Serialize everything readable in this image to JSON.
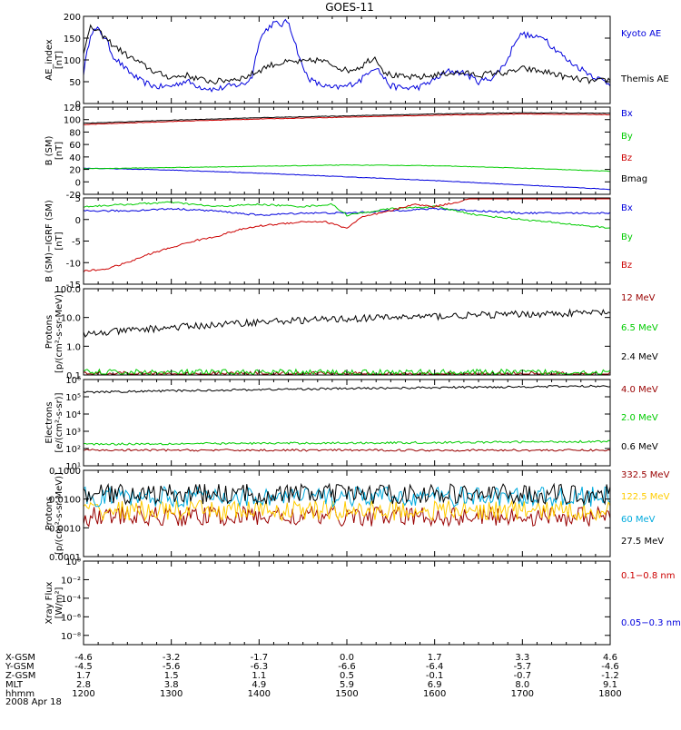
{
  "title": "GOES-11",
  "date": "2008 Apr 18",
  "x_axis": {
    "times": [
      1200,
      1300,
      1400,
      1500,
      1600,
      1700,
      1800
    ],
    "range": [
      1200,
      1800
    ],
    "ephemeris": [
      {
        "label": "X-GSM",
        "values": [
          "-4.6",
          "-3.2",
          "-1.7",
          "0.0",
          "1.7",
          "3.3",
          "4.6"
        ]
      },
      {
        "label": "Y-GSM",
        "values": [
          "-4.5",
          "-5.6",
          "-6.3",
          "-6.6",
          "-6.4",
          "-5.7",
          "-4.6"
        ]
      },
      {
        "label": "Z-GSM",
        "values": [
          "1.7",
          "1.5",
          "1.1",
          "0.5",
          "-0.1",
          "-0.7",
          "-1.2"
        ]
      },
      {
        "label": "MLT",
        "values": [
          "2.8",
          "3.8",
          "4.9",
          "5.9",
          "6.9",
          "8.0",
          "9.1"
        ]
      },
      {
        "label": "hhmm",
        "values": [
          "1200",
          "1300",
          "1400",
          "1500",
          "1600",
          "1700",
          "1800"
        ]
      }
    ]
  },
  "chart_data": [
    {
      "type": "line",
      "ylabel": "AE_index\n[nT]",
      "ylim": [
        0,
        200
      ],
      "log": false,
      "yticks": [
        "0",
        "50",
        "100",
        "150",
        "200"
      ],
      "ytick_values": [
        0,
        50,
        100,
        150,
        200
      ],
      "series": [
        {
          "name": "Kyoto AE",
          "color": "#0000dd",
          "x": [
            1200,
            1205,
            1210,
            1215,
            1220,
            1230,
            1240,
            1250,
            1300,
            1310,
            1320,
            1330,
            1340,
            1350,
            1355,
            1400,
            1405,
            1410,
            1415,
            1420,
            1425,
            1430,
            1435,
            1440,
            1450,
            1500,
            1510,
            1515,
            1520,
            1525,
            1530,
            1540,
            1550,
            1600,
            1610,
            1620,
            1630,
            1640,
            1650,
            1655,
            1700,
            1710,
            1715,
            1720,
            1725,
            1730,
            1740,
            1750,
            1800
          ],
          "y": [
            70,
            165,
            170,
            150,
            110,
            75,
            50,
            38,
            40,
            52,
            38,
            32,
            40,
            45,
            60,
            145,
            170,
            185,
            180,
            190,
            135,
            80,
            55,
            45,
            35,
            40,
            55,
            75,
            85,
            60,
            40,
            35,
            38,
            55,
            75,
            70,
            50,
            60,
            100,
            145,
            160,
            150,
            155,
            130,
            120,
            100,
            80,
            60,
            45
          ]
        },
        {
          "name": "Themis AE",
          "color": "#000000",
          "x": [
            1200,
            1205,
            1210,
            1215,
            1220,
            1230,
            1240,
            1250,
            1300,
            1310,
            1320,
            1330,
            1340,
            1350,
            1400,
            1405,
            1410,
            1420,
            1430,
            1440,
            1450,
            1500,
            1510,
            1515,
            1520,
            1525,
            1530,
            1540,
            1550,
            1600,
            1610,
            1620,
            1630,
            1640,
            1650,
            1700,
            1710,
            1720,
            1730,
            1740,
            1750,
            1800
          ],
          "y": [
            120,
            175,
            165,
            150,
            135,
            110,
            90,
            70,
            60,
            65,
            55,
            50,
            55,
            60,
            75,
            85,
            90,
            95,
            95,
            100,
            90,
            75,
            85,
            100,
            105,
            75,
            65,
            60,
            60,
            65,
            70,
            70,
            65,
            70,
            70,
            80,
            75,
            70,
            60,
            55,
            50,
            55
          ]
        }
      ]
    },
    {
      "type": "line",
      "ylabel": "B (SM)\n[nT]",
      "ylim": [
        -20,
        120
      ],
      "log": false,
      "yticks": [
        "-20",
        "0",
        "20",
        "40",
        "60",
        "80",
        "100",
        "120"
      ],
      "ytick_values": [
        -20,
        0,
        20,
        40,
        60,
        80,
        100,
        120
      ],
      "series": [
        {
          "name": "Bx",
          "color": "#0000dd",
          "x": [
            1200,
            1300,
            1400,
            1500,
            1600,
            1700,
            1800
          ],
          "y": [
            22,
            19,
            14,
            8,
            2,
            -5,
            -12
          ]
        },
        {
          "name": "By",
          "color": "#00cc00",
          "x": [
            1200,
            1300,
            1400,
            1500,
            1600,
            1700,
            1800
          ],
          "y": [
            21,
            23,
            25,
            27,
            26,
            22,
            17
          ]
        },
        {
          "name": "Bz",
          "color": "#cc0000",
          "x": [
            1200,
            1300,
            1400,
            1500,
            1600,
            1700,
            1800
          ],
          "y": [
            92,
            97,
            101,
            104,
            107,
            109,
            108
          ]
        },
        {
          "name": "Bmag",
          "color": "#000000",
          "x": [
            1200,
            1300,
            1400,
            1500,
            1600,
            1700,
            1800
          ],
          "y": [
            94,
            99,
            103,
            106,
            109,
            111,
            110
          ]
        }
      ]
    },
    {
      "type": "line",
      "ylabel": "B (SM)−IGRF (SM)\n[nT]",
      "ylim": [
        -15,
        5
      ],
      "log": false,
      "yticks": [
        "-15",
        "-10",
        "-5",
        "0",
        "5"
      ],
      "ytick_values": [
        -15,
        -10,
        -5,
        0,
        5
      ],
      "series": [
        {
          "name": "Bx",
          "color": "#0000dd",
          "x": [
            1200,
            1230,
            1300,
            1330,
            1400,
            1430,
            1500,
            1530,
            1600,
            1630,
            1700,
            1730,
            1800
          ],
          "y": [
            2,
            2,
            2.5,
            2,
            1,
            1.5,
            1.5,
            2,
            2.5,
            2,
            1.5,
            1.5,
            1.5
          ]
        },
        {
          "name": "By",
          "color": "#00cc00",
          "x": [
            1200,
            1230,
            1300,
            1330,
            1400,
            1430,
            1450,
            1500,
            1530,
            1600,
            1630,
            1700,
            1730,
            1800
          ],
          "y": [
            3,
            3.5,
            4,
            3,
            3.5,
            3,
            3.5,
            1,
            2.5,
            3,
            1,
            0,
            -1,
            -2
          ]
        },
        {
          "name": "Bz",
          "color": "#cc0000",
          "x": [
            1200,
            1215,
            1230,
            1245,
            1300,
            1315,
            1330,
            1345,
            1400,
            1415,
            1430,
            1445,
            1500,
            1510,
            1530,
            1545,
            1600,
            1615,
            1630,
            1645,
            1700,
            1715,
            1730,
            1745,
            1800
          ],
          "y": [
            -12,
            -11.5,
            -10,
            -8,
            -6.5,
            -5,
            -4,
            -2.5,
            -1.5,
            -1,
            -0.5,
            -0.5,
            -2,
            0.5,
            2,
            3.5,
            3,
            4,
            5.5,
            6,
            6,
            7.5,
            6,
            6,
            5.5
          ]
        }
      ]
    },
    {
      "type": "line",
      "ylabel": "Protons\n[p/(cm²-s-sr-MeV)]",
      "ylim": [
        0.1,
        100
      ],
      "log": true,
      "yticks": [
        "0.1",
        "1.0",
        "10.0",
        "100.0"
      ],
      "ytick_values": [
        0.1,
        1,
        10,
        100
      ],
      "series": [
        {
          "name": "12 MeV",
          "color": "#990000",
          "x": [
            1200,
            1800
          ],
          "y": [
            0.1,
            0.1
          ]
        },
        {
          "name": "6.5 MeV",
          "color": "#00cc00",
          "x": [
            1200,
            1800
          ],
          "y": [
            0.12,
            0.12
          ]
        },
        {
          "name": "2.4 MeV",
          "color": "#000000",
          "x": [
            1200,
            1230,
            1300,
            1330,
            1400,
            1430,
            1500,
            1530,
            1600,
            1630,
            1700,
            1730,
            1800
          ],
          "y": [
            2.5,
            3.5,
            4.5,
            5.5,
            7,
            8,
            9,
            10,
            11,
            12,
            13,
            14,
            15
          ]
        }
      ]
    },
    {
      "type": "line",
      "ylabel": "Electrons\n[e/(cm²-s-sr)]",
      "ylim": [
        10,
        1000000
      ],
      "log": true,
      "yticks": [
        "10¹",
        "10²",
        "10³",
        "10⁴",
        "10⁵",
        "10⁶"
      ],
      "ytick_values": [
        10,
        100,
        1000,
        10000,
        100000,
        1000000
      ],
      "series": [
        {
          "name": "4.0 MeV",
          "color": "#990000",
          "x": [
            1200,
            1800
          ],
          "y": [
            80,
            80
          ]
        },
        {
          "name": "2.0 MeV",
          "color": "#00cc00",
          "x": [
            1200,
            1300,
            1400,
            1500,
            1600,
            1700,
            1800
          ],
          "y": [
            180,
            190,
            200,
            210,
            220,
            240,
            260
          ]
        },
        {
          "name": "0.6 MeV",
          "color": "#000000",
          "x": [
            1200,
            1300,
            1400,
            1500,
            1600,
            1700,
            1800
          ],
          "y": [
            180000,
            220000,
            260000,
            300000,
            340000,
            380000,
            420000
          ]
        }
      ]
    },
    {
      "type": "line",
      "ylabel": "Protons\n[p/(cm²-s-sr-MeV)]",
      "ylim": [
        0.0001,
        0.1
      ],
      "log": true,
      "yticks": [
        "0.0001",
        "0.0010",
        "0.0100",
        "0.1000"
      ],
      "ytick_values": [
        0.0001,
        0.001,
        0.01,
        0.1
      ],
      "series": [
        {
          "name": "332.5 MeV",
          "color": "#990000",
          "x": [
            1200,
            1800
          ],
          "y": [
            0.0025,
            0.0025
          ]
        },
        {
          "name": "122.5 MeV",
          "color": "#ffcc00",
          "x": [
            1200,
            1800
          ],
          "y": [
            0.004,
            0.004
          ]
        },
        {
          "name": "60 MeV",
          "color": "#00aadd",
          "x": [
            1200,
            1800
          ],
          "y": [
            0.012,
            0.012
          ]
        },
        {
          "name": "27.5 MeV",
          "color": "#000000",
          "x": [
            1200,
            1800
          ],
          "y": [
            0.015,
            0.015
          ]
        }
      ]
    },
    {
      "type": "line",
      "ylabel": "Xray Flux\n[W/m²]",
      "ylim": [
        1e-09,
        1
      ],
      "log": true,
      "yticks": [
        "10⁻⁸",
        "10⁻⁶",
        "10⁻⁴",
        "10⁻²",
        "10⁰"
      ],
      "ytick_values": [
        1e-08,
        1e-06,
        0.0001,
        0.01,
        1
      ],
      "series": [
        {
          "name": "0.1−0.8 nm",
          "color": "#cc0000",
          "x": [],
          "y": []
        },
        {
          "name": "0.05−0.3 nm",
          "color": "#0000dd",
          "x": [],
          "y": []
        }
      ]
    }
  ]
}
